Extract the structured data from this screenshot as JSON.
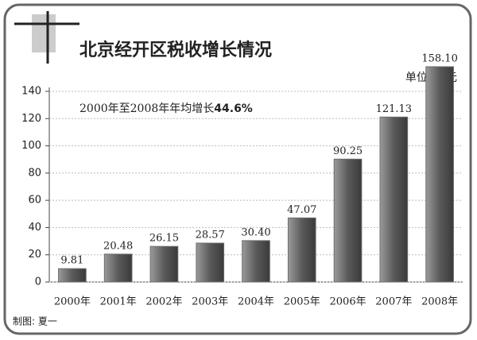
{
  "chart_data": {
    "type": "bar",
    "title": "北京经开区税收增长情况",
    "unit_label": "单位: 亿元",
    "annotation": "2000年至2008年年均增长",
    "annotation_highlight": "44.6%",
    "credit": "制图: 夏一",
    "categories": [
      "2000年",
      "2001年",
      "2002年",
      "2003年",
      "2004年",
      "2005年",
      "2006年",
      "2007年",
      "2008年"
    ],
    "values": [
      9.81,
      20.48,
      26.15,
      28.57,
      30.4,
      47.07,
      90.25,
      121.13,
      158.1
    ],
    "value_labels": [
      "9.81",
      "20.48",
      "26.15",
      "28.57",
      "30.40",
      "47.07",
      "90.25",
      "121.13",
      "158.10"
    ],
    "color": "#6e6e6e",
    "ylim": [
      0,
      140
    ],
    "yticks": [
      0,
      20,
      40,
      60,
      80,
      100,
      120,
      140
    ],
    "grid": true
  }
}
